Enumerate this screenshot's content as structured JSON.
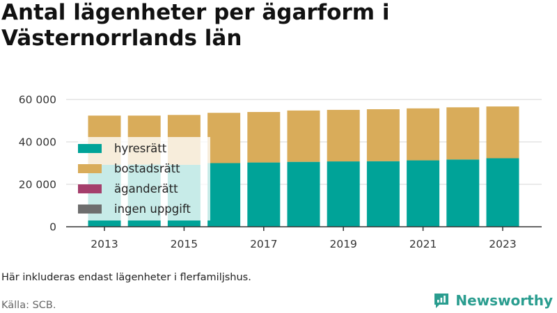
{
  "title": "Antal lägenheter per ägarform i Västernorrlands län",
  "note": "Här inkluderas endast lägenheter i flerfamiljshus.",
  "source": "Källa: SCB.",
  "brand": {
    "name": "Newsworthy",
    "icon": "newsworthy-logo-icon",
    "color": "#2a9d8f"
  },
  "chart_data": {
    "type": "bar",
    "stacked": true,
    "title": "Antal lägenheter per ägarform i Västernorrlands län",
    "xlabel": "",
    "ylabel": "",
    "ylim": [
      0,
      60000
    ],
    "grid": true,
    "legend_position": "left",
    "categories": [
      "2013",
      "2014",
      "2015",
      "2016",
      "2017",
      "2018",
      "2019",
      "2020",
      "2021",
      "2022",
      "2023"
    ],
    "x_tick_labels": [
      "2013",
      "2015",
      "2017",
      "2019",
      "2021",
      "2023"
    ],
    "y_ticks": [
      0,
      20000,
      40000,
      60000
    ],
    "y_tick_labels": [
      "0",
      "20 000",
      "40 000",
      "60 000"
    ],
    "series": [
      {
        "name": "hyresrätt",
        "color": "#00a398",
        "values": [
          29200,
          29300,
          29200,
          30000,
          30300,
          30600,
          30800,
          30900,
          31300,
          31700,
          32300
        ]
      },
      {
        "name": "bostadsrätt",
        "color": "#d9ac5a",
        "values": [
          23200,
          23100,
          23500,
          23700,
          23800,
          24200,
          24300,
          24500,
          24500,
          24600,
          24400
        ]
      },
      {
        "name": "äganderätt",
        "color": "#a53f6c",
        "values": [
          0,
          0,
          0,
          0,
          0,
          0,
          0,
          0,
          0,
          0,
          0
        ]
      },
      {
        "name": "ingen uppgift",
        "color": "#6e6e6e",
        "values": [
          0,
          0,
          0,
          0,
          0,
          0,
          0,
          0,
          0,
          0,
          0
        ]
      }
    ]
  }
}
